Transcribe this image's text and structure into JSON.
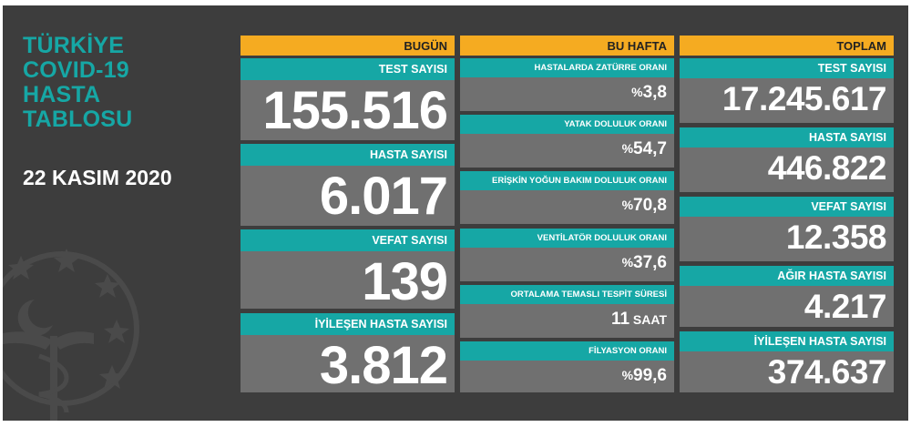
{
  "panel": {
    "title_lines": [
      "TÜRKİYE",
      "COVID-19",
      "HASTA",
      "TABLOSU"
    ],
    "date": "22 KASIM 2020"
  },
  "today": {
    "header": "BUGÜN",
    "cards": [
      {
        "label": "TEST SAYISI",
        "value": "155.516"
      },
      {
        "label": "HASTA SAYISI",
        "value": "6.017"
      },
      {
        "label": "VEFAT SAYISI",
        "value": "139"
      },
      {
        "label": "İYİLEŞEN HASTA SAYISI",
        "value": "3.812"
      }
    ]
  },
  "week": {
    "header": "BU HAFTA",
    "cards": [
      {
        "label": "HASTALARDA ZATÜRRE ORANI",
        "prefix": "%",
        "value": "3,8",
        "suffix": ""
      },
      {
        "label": "YATAK DOLULUK ORANI",
        "prefix": "%",
        "value": "54,7",
        "suffix": ""
      },
      {
        "label": "ERİŞKİN YOĞUN BAKIM DOLULUK ORANI",
        "prefix": "%",
        "value": "70,8",
        "suffix": ""
      },
      {
        "label": "VENTİLATÖR DOLULUK ORANI",
        "prefix": "%",
        "value": "37,6",
        "suffix": ""
      },
      {
        "label": "ORTALAMA TEMASLI TESPİT SÜRESİ",
        "prefix": "",
        "value": "11",
        "suffix": " SAAT"
      },
      {
        "label": "FİLYASYON ORANI",
        "prefix": "%",
        "value": "99,6",
        "suffix": ""
      }
    ]
  },
  "total": {
    "header": "TOPLAM",
    "cards": [
      {
        "label": "TEST SAYISI",
        "value": "17.245.617"
      },
      {
        "label": "HASTA SAYISI",
        "value": "446.822"
      },
      {
        "label": "VEFAT SAYISI",
        "value": "12.358"
      },
      {
        "label": "AĞIR HASTA SAYISI",
        "value": "4.217"
      },
      {
        "label": "İYİLEŞEN HASTA SAYISI",
        "value": "374.637"
      }
    ]
  },
  "colors": {
    "background": "#3d3d3d",
    "teal": "#16a7a5",
    "orange": "#f5ab21",
    "card_gray": "#707070"
  },
  "icons": [
    "ministry-emblem-icon"
  ]
}
